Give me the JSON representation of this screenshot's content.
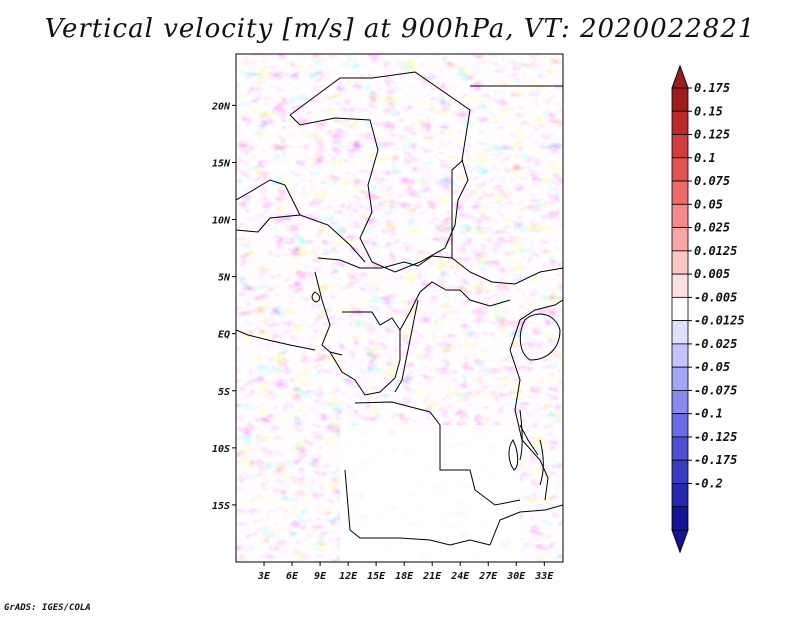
{
  "title": "Vertical velocity [m/s] at 900hPa, VT: 2020022821",
  "credit": "GrADS: IGES/COLA",
  "map": {
    "lat_range": [
      -20,
      24.5
    ],
    "lon_range": [
      0,
      35
    ],
    "lat_ticks": [
      {
        "value": 20,
        "label": "20N"
      },
      {
        "value": 15,
        "label": "15N"
      },
      {
        "value": 10,
        "label": "10N"
      },
      {
        "value": 5,
        "label": "5N"
      },
      {
        "value": 0,
        "label": "EQ"
      },
      {
        "value": -5,
        "label": "5S"
      },
      {
        "value": -10,
        "label": "10S"
      },
      {
        "value": -15,
        "label": "15S"
      }
    ],
    "lon_ticks": [
      {
        "value": 3,
        "label": "3E"
      },
      {
        "value": 6,
        "label": "6E"
      },
      {
        "value": 9,
        "label": "9E"
      },
      {
        "value": 12,
        "label": "12E"
      },
      {
        "value": 15,
        "label": "15E"
      },
      {
        "value": 18,
        "label": "18E"
      },
      {
        "value": 21,
        "label": "21E"
      },
      {
        "value": 24,
        "label": "24E"
      },
      {
        "value": 27,
        "label": "27E"
      },
      {
        "value": 30,
        "label": "30E"
      },
      {
        "value": 33,
        "label": "33E"
      }
    ]
  },
  "colorbar": {
    "labels": [
      "0.175",
      "0.15",
      "0.125",
      "0.1",
      "0.075",
      "0.05",
      "0.025",
      "0.0125",
      "0.005",
      "-0.005",
      "-0.0125",
      "-0.025",
      "-0.05",
      "-0.075",
      "-0.1",
      "-0.125",
      "-0.175",
      "-0.2"
    ],
    "colors": [
      "#a01c1c",
      "#be2a2a",
      "#d23c3c",
      "#e25252",
      "#ee6c6c",
      "#f48a8a",
      "#f8a6a6",
      "#fbc4c4",
      "#fde0e0",
      "#ffffff",
      "#e0e0fd",
      "#c4c4fa",
      "#a6a6f6",
      "#8a8aee",
      "#6c6ce4",
      "#5050d4",
      "#3a3ac4",
      "#2626b0",
      "#141496"
    ],
    "max_color": "#a01c1c",
    "min_color": "#141496"
  }
}
